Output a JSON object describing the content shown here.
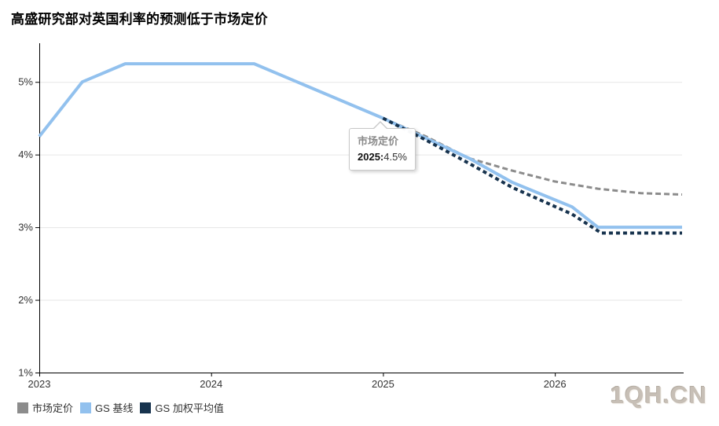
{
  "title": "高盛研究部对英国利率的预测低于市场定价",
  "watermark": "1QH.CN",
  "tooltip": {
    "series": "市场定价",
    "x_label": "2025:",
    "value": "4.5%"
  },
  "chart_data": {
    "type": "line",
    "title": "高盛研究部对英国利率的预测低于市场定价",
    "xlabel": "",
    "ylabel": "",
    "xlim": [
      2023,
      2026.74
    ],
    "ylim": [
      1,
      5.5
    ],
    "grid": true,
    "legend_position": "bottom-left",
    "xticks": [
      {
        "v": 2023,
        "label": "2023"
      },
      {
        "v": 2024,
        "label": "2024"
      },
      {
        "v": 2025,
        "label": "2025"
      },
      {
        "v": 2026,
        "label": "2026"
      }
    ],
    "yticks": [
      {
        "v": 1,
        "label": "1%"
      },
      {
        "v": 2,
        "label": "2%"
      },
      {
        "v": 3,
        "label": "3%"
      },
      {
        "v": 4,
        "label": "4%"
      },
      {
        "v": 5,
        "label": "5%"
      }
    ],
    "colors": {
      "axis": "#000000",
      "grid": "#e6e6e6",
      "tick_label": "#333333",
      "tooltip_border": "#c9c9c9",
      "watermark": "#c7bfb6"
    },
    "series": [
      {
        "name": "市场定价",
        "color": "#8c8c8c",
        "dash": "7 4",
        "width": 3,
        "points": [
          [
            2025,
            4.5
          ],
          [
            2025.25,
            4.25
          ],
          [
            2025.5,
            3.95
          ],
          [
            2025.75,
            3.78
          ],
          [
            2026,
            3.63
          ],
          [
            2026.25,
            3.53
          ],
          [
            2026.5,
            3.47
          ],
          [
            2026.74,
            3.45
          ]
        ]
      },
      {
        "name": "GS 基线",
        "color": "#92c1ee",
        "dash": null,
        "width": 4,
        "points": [
          [
            2023,
            4.25
          ],
          [
            2023.25,
            5.0
          ],
          [
            2023.5,
            5.25
          ],
          [
            2024.25,
            5.25
          ],
          [
            2025,
            4.5
          ],
          [
            2025.5,
            3.95
          ],
          [
            2025.75,
            3.62
          ],
          [
            2026.1,
            3.28
          ],
          [
            2026.25,
            3.0
          ],
          [
            2026.74,
            3.0
          ]
        ]
      },
      {
        "name": "GS 加权平均值",
        "color": "#17334e",
        "dash": "5 4",
        "width": 4,
        "points": [
          [
            2025,
            4.5
          ],
          [
            2025.25,
            4.2
          ],
          [
            2025.5,
            3.88
          ],
          [
            2025.75,
            3.55
          ],
          [
            2026.1,
            3.18
          ],
          [
            2026.27,
            2.92
          ],
          [
            2026.74,
            2.92
          ]
        ]
      }
    ]
  }
}
